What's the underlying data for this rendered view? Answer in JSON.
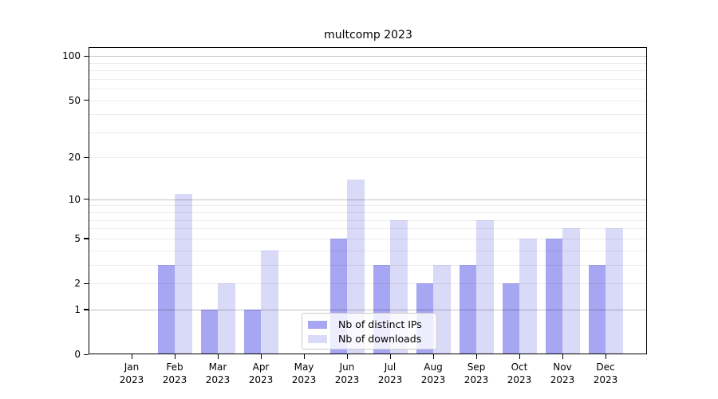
{
  "figure": {
    "background": "#ffffff"
  },
  "chart_data": {
    "type": "bar",
    "title": "multcomp 2023",
    "xlabel": "",
    "ylabel": "",
    "categories": [
      "Jan 2023",
      "Feb 2023",
      "Mar 2023",
      "Apr 2023",
      "May 2023",
      "Jun 2023",
      "Jul 2023",
      "Aug 2023",
      "Sep 2023",
      "Oct 2023",
      "Nov 2023",
      "Dec 2023"
    ],
    "x_axis": {
      "months": [
        "Jan",
        "Feb",
        "Mar",
        "Apr",
        "May",
        "Jun",
        "Jul",
        "Aug",
        "Sep",
        "Oct",
        "Nov",
        "Dec"
      ],
      "year": "2023"
    },
    "series": [
      {
        "name": "Nb of distinct IPs",
        "color": "#a6a6f2",
        "values": [
          0,
          3,
          1,
          1,
          0,
          5,
          3,
          2,
          3,
          2,
          5,
          3
        ]
      },
      {
        "name": "Nb of downloads",
        "color": "#d9d9f8",
        "values": [
          0,
          11,
          2,
          4,
          0,
          14,
          7,
          3,
          7,
          5,
          6,
          6
        ]
      }
    ],
    "y_axis": {
      "scale": "log1p",
      "ticks": [
        0,
        1,
        2,
        5,
        10,
        20,
        50,
        100
      ],
      "ylim": [
        0,
        114
      ],
      "major_gridlines": [
        1,
        10,
        100
      ],
      "minor_gridlines": [
        2,
        3,
        4,
        5,
        6,
        7,
        8,
        9,
        20,
        30,
        40,
        50,
        60,
        70,
        80,
        90
      ]
    },
    "grid": "on",
    "legend": {
      "position": "lower-center",
      "entries": [
        "Nb of distinct IPs",
        "Nb of downloads"
      ]
    }
  }
}
